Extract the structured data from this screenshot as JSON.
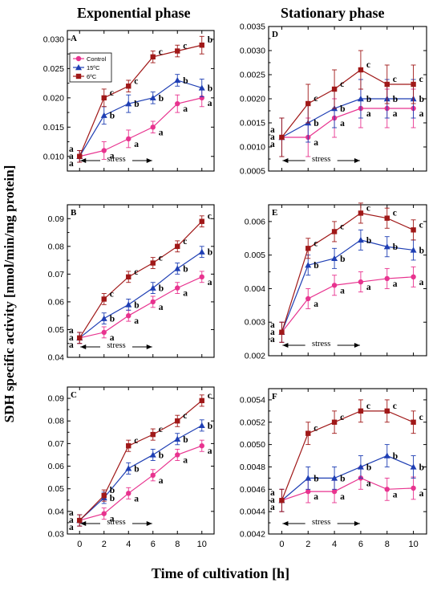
{
  "figure": {
    "col_titles": [
      "Exponential phase",
      "Stationary phase"
    ],
    "ylabel": "SDH specific activity [nmol/min/mg protein]",
    "xlabel": "Time of cultivation [h]",
    "stress_label": "stress",
    "legend": [
      "Control",
      "15ºC",
      "6ºC"
    ],
    "colors": {
      "control": "#e8338f",
      "c15": "#1f3fb4",
      "c6": "#a01818"
    }
  },
  "chart_data": [
    {
      "type": "line",
      "panel": "A",
      "x": [
        0,
        2,
        4,
        6,
        8,
        10
      ],
      "ylim": [
        0.0075,
        0.0315
      ],
      "yticks": [
        "0.010",
        "0.015",
        "0.020",
        "0.025",
        "0.030"
      ],
      "ytick_values": [
        0.01,
        0.015,
        0.02,
        0.025,
        0.03
      ],
      "legend_placement": "top-left",
      "series": [
        {
          "name": "Control",
          "values": [
            0.01,
            0.011,
            0.013,
            0.015,
            0.019,
            0.02
          ],
          "errors": [
            0.001,
            0.0015,
            0.0015,
            0.001,
            0.0015,
            0.0015
          ],
          "labels": [
            "a",
            "a",
            "a",
            "a",
            "a",
            "a"
          ]
        },
        {
          "name": "15ºC",
          "values": [
            0.01,
            0.017,
            0.019,
            0.02,
            0.023,
            0.0217
          ],
          "errors": [
            0.001,
            0.0015,
            0.0015,
            0.001,
            0.001,
            0.0015
          ],
          "labels": [
            "a",
            "b",
            "b",
            "b",
            "b",
            "b"
          ]
        },
        {
          "name": "6ºC",
          "values": [
            0.01,
            0.02,
            0.022,
            0.027,
            0.028,
            0.029
          ],
          "errors": [
            0.001,
            0.0015,
            0.001,
            0.001,
            0.001,
            0.0015
          ],
          "labels": [
            "a",
            "c",
            "c",
            "c",
            "c",
            "b"
          ]
        }
      ]
    },
    {
      "type": "line",
      "panel": "B",
      "x": [
        0,
        2,
        4,
        6,
        8,
        10
      ],
      "ylim": [
        0.04,
        0.095
      ],
      "yticks": [
        "0.04",
        "0.05",
        "0.06",
        "0.07",
        "0.08",
        "0.09"
      ],
      "ytick_values": [
        0.04,
        0.05,
        0.06,
        0.07,
        0.08,
        0.09
      ],
      "series": [
        {
          "name": "Control",
          "values": [
            0.047,
            0.049,
            0.055,
            0.06,
            0.065,
            0.069
          ],
          "errors": [
            0.002,
            0.002,
            0.002,
            0.002,
            0.002,
            0.002
          ],
          "labels": [
            "a",
            "a",
            "a",
            "a",
            "a",
            "a"
          ]
        },
        {
          "name": "15ºC",
          "values": [
            0.047,
            0.054,
            0.059,
            0.065,
            0.072,
            0.078
          ],
          "errors": [
            0.002,
            0.002,
            0.002,
            0.002,
            0.002,
            0.002
          ],
          "labels": [
            "a",
            "b",
            "b",
            "b",
            "b",
            "b"
          ]
        },
        {
          "name": "6ºC",
          "values": [
            0.047,
            0.061,
            0.069,
            0.074,
            0.08,
            0.089
          ],
          "errors": [
            0.002,
            0.002,
            0.002,
            0.002,
            0.002,
            0.002
          ],
          "labels": [
            "a",
            "c",
            "c",
            "c",
            "c",
            "c"
          ]
        }
      ]
    },
    {
      "type": "line",
      "panel": "C",
      "x": [
        0,
        2,
        4,
        6,
        8,
        10
      ],
      "ylim": [
        0.03,
        0.095
      ],
      "yticks": [
        "0.03",
        "0.04",
        "0.05",
        "0.06",
        "0.07",
        "0.08",
        "0.09"
      ],
      "ytick_values": [
        0.03,
        0.04,
        0.05,
        0.06,
        0.07,
        0.08,
        0.09
      ],
      "series": [
        {
          "name": "Control",
          "values": [
            0.036,
            0.039,
            0.048,
            0.056,
            0.065,
            0.069
          ],
          "errors": [
            0.0025,
            0.0025,
            0.0025,
            0.0025,
            0.0025,
            0.0025
          ],
          "labels": [
            "a",
            "a",
            "a",
            "a",
            "a",
            "a"
          ]
        },
        {
          "name": "15ºC",
          "values": [
            0.036,
            0.046,
            0.059,
            0.065,
            0.072,
            0.078
          ],
          "errors": [
            0.0025,
            0.0025,
            0.0025,
            0.0025,
            0.0025,
            0.0025
          ],
          "labels": [
            "a",
            "b",
            "b",
            "b",
            "b",
            "b"
          ]
        },
        {
          "name": "6ºC",
          "values": [
            0.036,
            0.047,
            0.069,
            0.074,
            0.08,
            0.089
          ],
          "errors": [
            0.0025,
            0.0025,
            0.0025,
            0.0025,
            0.0025,
            0.0025
          ],
          "labels": [
            "a",
            "b",
            "c",
            "c",
            "c",
            "c"
          ]
        }
      ]
    },
    {
      "type": "line",
      "panel": "D",
      "x": [
        0,
        2,
        4,
        6,
        8,
        10
      ],
      "ylim": [
        0.0005,
        0.0035
      ],
      "yticks": [
        "0.0005",
        "0.0010",
        "0.0015",
        "0.0020",
        "0.0025",
        "0.0030",
        "0.0035"
      ],
      "ytick_values": [
        0.0005,
        0.001,
        0.0015,
        0.002,
        0.0025,
        0.003,
        0.0035
      ],
      "series": [
        {
          "name": "Control",
          "values": [
            0.0012,
            0.0012,
            0.0016,
            0.0018,
            0.0018,
            0.0018
          ],
          "errors": [
            0.0004,
            0.0004,
            0.0004,
            0.0004,
            0.0004,
            0.0004
          ],
          "labels": [
            "a",
            "a",
            "a",
            "a",
            "a",
            "a"
          ]
        },
        {
          "name": "15ºC",
          "values": [
            0.0012,
            0.0015,
            0.0018,
            0.002,
            0.002,
            0.002
          ],
          "errors": [
            0.0004,
            0.0004,
            0.0004,
            0.0004,
            0.0004,
            0.0004
          ],
          "labels": [
            "a",
            "b",
            "b",
            "b",
            "b",
            "b"
          ]
        },
        {
          "name": "6ºC",
          "values": [
            0.0012,
            0.0019,
            0.0022,
            0.0026,
            0.0023,
            0.0023
          ],
          "errors": [
            0.0004,
            0.0004,
            0.0004,
            0.0004,
            0.0004,
            0.0004
          ],
          "labels": [
            "a",
            "c",
            "c",
            "c",
            "c",
            "c"
          ]
        }
      ]
    },
    {
      "type": "line",
      "panel": "E",
      "x": [
        0,
        2,
        4,
        6,
        8,
        10
      ],
      "ylim": [
        0.002,
        0.0065
      ],
      "yticks": [
        "0.002",
        "0.003",
        "0.004",
        "0.005",
        "0.006"
      ],
      "ytick_values": [
        0.002,
        0.003,
        0.004,
        0.005,
        0.006
      ],
      "series": [
        {
          "name": "Control",
          "values": [
            0.0027,
            0.0037,
            0.0041,
            0.0042,
            0.0043,
            0.00435
          ],
          "errors": [
            0.0003,
            0.0003,
            0.0003,
            0.0003,
            0.0003,
            0.0003
          ],
          "labels": [
            "a",
            "a",
            "a",
            "a",
            "a",
            "a"
          ]
        },
        {
          "name": "15ºC",
          "values": [
            0.0027,
            0.0047,
            0.0049,
            0.00545,
            0.00525,
            0.00515
          ],
          "errors": [
            0.0003,
            0.0003,
            0.0003,
            0.0003,
            0.0003,
            0.0003
          ],
          "labels": [
            "a",
            "b",
            "b",
            "b",
            "b",
            "b"
          ]
        },
        {
          "name": "6ºC",
          "values": [
            0.0027,
            0.0052,
            0.0057,
            0.00625,
            0.0061,
            0.00575
          ],
          "errors": [
            0.0003,
            0.0003,
            0.0003,
            0.0003,
            0.0003,
            0.0003
          ],
          "labels": [
            "a",
            "c",
            "c",
            "c",
            "c",
            "c"
          ]
        }
      ]
    },
    {
      "type": "line",
      "panel": "F",
      "x": [
        0,
        2,
        4,
        6,
        8,
        10
      ],
      "ylim": [
        0.0042,
        0.0055
      ],
      "yticks": [
        "0.0042",
        "0.0044",
        "0.0046",
        "0.0048",
        "0.0050",
        "0.0052",
        "0.0054"
      ],
      "ytick_values": [
        0.0042,
        0.0044,
        0.0046,
        0.0048,
        0.005,
        0.0052,
        0.0054
      ],
      "series": [
        {
          "name": "Control",
          "values": [
            0.0045,
            0.00458,
            0.00458,
            0.0047,
            0.0046,
            0.00461
          ],
          "errors": [
            0.0001,
            0.0001,
            0.0001,
            0.0001,
            0.0001,
            0.0001
          ],
          "labels": [
            "a",
            "a",
            "a",
            "a",
            "a",
            "a"
          ]
        },
        {
          "name": "15ºC",
          "values": [
            0.0045,
            0.0047,
            0.0047,
            0.0048,
            0.0049,
            0.0048
          ],
          "errors": [
            0.0001,
            0.0001,
            0.0001,
            0.0001,
            0.0001,
            0.0001
          ],
          "labels": [
            "a",
            "b",
            "b",
            "b",
            "b",
            "b"
          ]
        },
        {
          "name": "6ºC",
          "values": [
            0.0045,
            0.0051,
            0.0052,
            0.0053,
            0.0053,
            0.0052
          ],
          "errors": [
            0.0001,
            0.0001,
            0.0001,
            0.0001,
            0.0001,
            0.0001
          ],
          "labels": [
            "a",
            "c",
            "c",
            "c",
            "c",
            "c"
          ]
        }
      ]
    }
  ],
  "x_axis": {
    "ticks": [
      "0",
      "2",
      "4",
      "6",
      "8",
      "10"
    ],
    "tick_values": [
      0,
      2,
      4,
      6,
      8,
      10
    ],
    "xlim": [
      -1,
      11
    ]
  }
}
